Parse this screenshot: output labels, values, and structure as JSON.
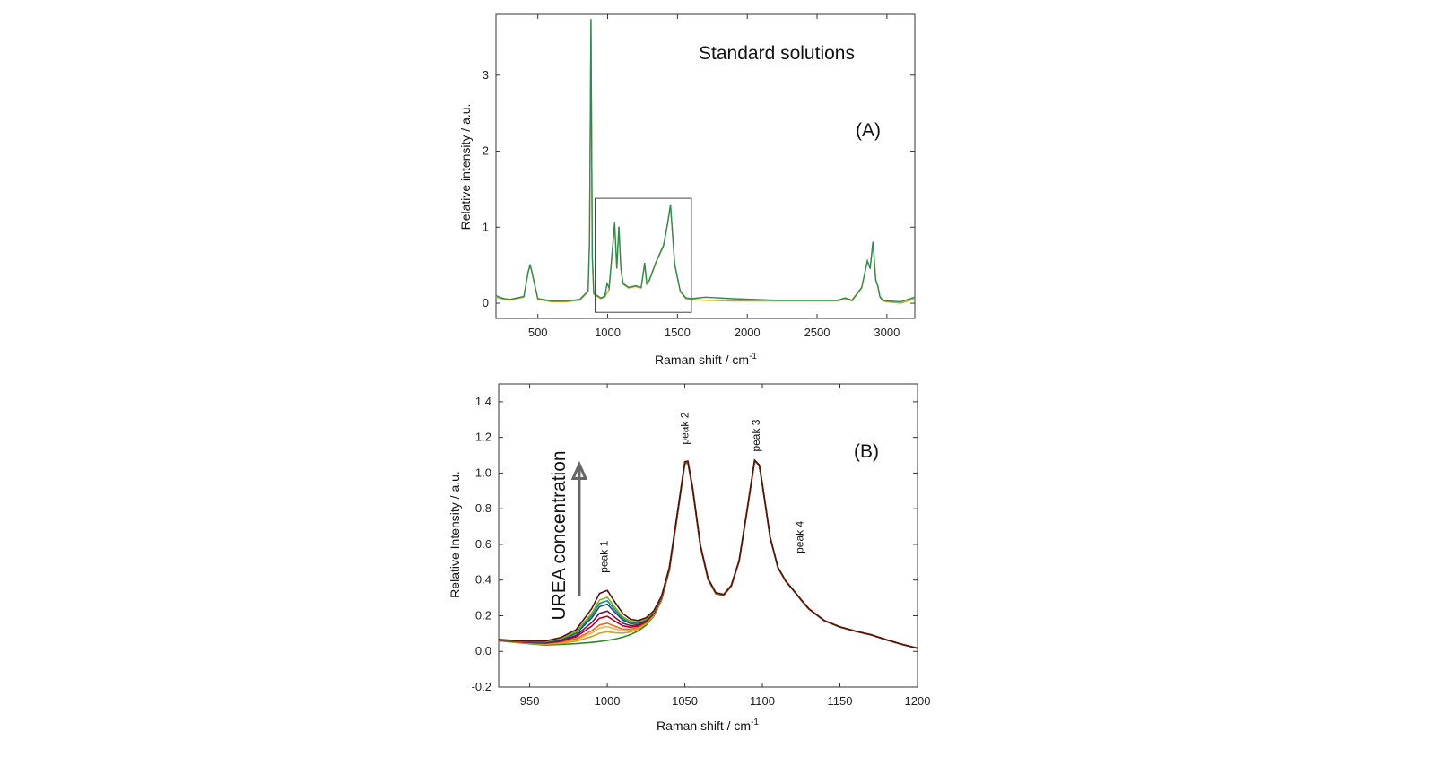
{
  "chart_data": [
    {
      "type": "line",
      "panel_label": "(A)",
      "title": "Standard solutions",
      "xlabel": "Raman shift / cm",
      "xlabel_sup": "-1",
      "ylabel": "Relative intensity / a.u.",
      "xlim": [
        200,
        3200
      ],
      "ylim": [
        -0.2,
        3.8
      ],
      "xticks": [
        500,
        1000,
        1500,
        2000,
        2500,
        3000
      ],
      "yticks": [
        0,
        1,
        2,
        3
      ],
      "zoom_box": {
        "x": [
          910,
          1600
        ],
        "y": [
          -0.12,
          1.38
        ]
      },
      "series": [
        {
          "color": "#d4a017",
          "x": [
            200,
            260,
            300,
            400,
            430,
            445,
            460,
            500,
            600,
            700,
            800,
            860,
            870,
            880,
            890,
            900,
            950,
            980,
            995,
            1010,
            1030,
            1050,
            1065,
            1080,
            1095,
            1110,
            1150,
            1200,
            1240,
            1265,
            1280,
            1300,
            1350,
            1400,
            1430,
            1450,
            1465,
            1480,
            1520,
            1560,
            1600,
            1700,
            1900,
            2200,
            2500,
            2650,
            2700,
            2750,
            2820,
            2860,
            2880,
            2900,
            2920,
            2935,
            2950,
            2970,
            3000,
            3100,
            3200
          ],
          "y": [
            0.08,
            0.05,
            0.04,
            0.08,
            0.4,
            0.5,
            0.38,
            0.05,
            0.02,
            0.02,
            0.04,
            0.15,
            0.8,
            3.72,
            0.6,
            0.12,
            0.06,
            0.08,
            0.14,
            0.18,
            0.6,
            1.05,
            0.45,
            1.0,
            0.45,
            0.25,
            0.2,
            0.22,
            0.2,
            0.52,
            0.25,
            0.3,
            0.55,
            0.75,
            1.05,
            1.28,
            0.9,
            0.5,
            0.15,
            0.06,
            0.05,
            0.04,
            0.03,
            0.03,
            0.03,
            0.03,
            0.06,
            0.03,
            0.2,
            0.55,
            0.45,
            0.8,
            0.3,
            0.22,
            0.08,
            0.03,
            0.02,
            0.0,
            0.06
          ]
        },
        {
          "color": "#2e8b57",
          "x": [
            200,
            260,
            300,
            400,
            430,
            445,
            460,
            500,
            600,
            700,
            800,
            860,
            870,
            880,
            890,
            900,
            950,
            980,
            995,
            1010,
            1030,
            1050,
            1065,
            1080,
            1095,
            1110,
            1150,
            1200,
            1240,
            1265,
            1280,
            1300,
            1350,
            1400,
            1430,
            1450,
            1465,
            1480,
            1520,
            1560,
            1600,
            1700,
            1900,
            2200,
            2500,
            2650,
            2700,
            2750,
            2820,
            2860,
            2880,
            2900,
            2920,
            2935,
            2950,
            2970,
            3000,
            3100,
            3200
          ],
          "y": [
            0.1,
            0.06,
            0.05,
            0.09,
            0.41,
            0.51,
            0.39,
            0.06,
            0.03,
            0.03,
            0.05,
            0.16,
            0.81,
            3.74,
            0.61,
            0.13,
            0.07,
            0.09,
            0.26,
            0.2,
            0.62,
            1.06,
            0.46,
            1.01,
            0.46,
            0.26,
            0.21,
            0.23,
            0.21,
            0.53,
            0.26,
            0.31,
            0.56,
            0.76,
            1.06,
            1.3,
            0.91,
            0.51,
            0.16,
            0.07,
            0.06,
            0.08,
            0.06,
            0.04,
            0.04,
            0.04,
            0.07,
            0.04,
            0.21,
            0.56,
            0.46,
            0.81,
            0.31,
            0.23,
            0.09,
            0.04,
            0.03,
            0.02,
            0.08
          ]
        }
      ]
    },
    {
      "type": "line",
      "panel_label": "(B)",
      "xlabel": "Raman shift / cm",
      "xlabel_sup": "-1",
      "ylabel": "Relative Intensity / a.u.",
      "xlim": [
        930,
        1200
      ],
      "ylim": [
        -0.2,
        1.5
      ],
      "xticks": [
        950,
        1000,
        1050,
        1100,
        1150,
        1200
      ],
      "yticks": [
        -0.2,
        0.0,
        0.2,
        0.4,
        0.6,
        0.8,
        1.0,
        1.2,
        1.4
      ],
      "ytick_labels": [
        "-0.2",
        "0.0",
        "0.2",
        "0.4",
        "0.6",
        "0.8",
        "1.0",
        "1.2",
        "1.4"
      ],
      "annotations": [
        {
          "text": "peak 1",
          "x": 998,
          "y": 0.44
        },
        {
          "text": "peak 2",
          "x": 1050,
          "y": 1.16
        },
        {
          "text": "peak 3",
          "x": 1096,
          "y": 1.12
        },
        {
          "text": "peak 4",
          "x": 1124,
          "y": 0.55
        }
      ],
      "arrow_label": "UREA concentration",
      "arrow": {
        "x": 982,
        "y_from": 0.31,
        "y_to": 1.05
      },
      "x_base": [
        930,
        940,
        950,
        960,
        970,
        980,
        990,
        995,
        1000,
        1005,
        1010,
        1015,
        1020,
        1025,
        1030,
        1035,
        1040,
        1045,
        1050,
        1052,
        1055,
        1060,
        1065,
        1070,
        1075,
        1080,
        1085,
        1090,
        1095,
        1098,
        1100,
        1105,
        1110,
        1115,
        1120,
        1125,
        1130,
        1140,
        1150,
        1160,
        1170,
        1180,
        1190,
        1200
      ],
      "series": [
        {
          "color": "#2e8b22",
          "p1": 0.0
        },
        {
          "color": "#d4a017",
          "p1": 0.05
        },
        {
          "color": "#e8b64a",
          "p1": 0.08
        },
        {
          "color": "#e86a1a",
          "p1": 0.1
        },
        {
          "color": "#b0002a",
          "p1": 0.14
        },
        {
          "color": "#6a1b4d",
          "p1": 0.17
        },
        {
          "color": "#1f4e79",
          "p1": 0.21
        },
        {
          "color": "#1a8a8a",
          "p1": 0.23
        },
        {
          "color": "#7fb320",
          "p1": 0.25
        },
        {
          "color": "#5a0e0e",
          "p1": 0.29
        }
      ]
    }
  ]
}
